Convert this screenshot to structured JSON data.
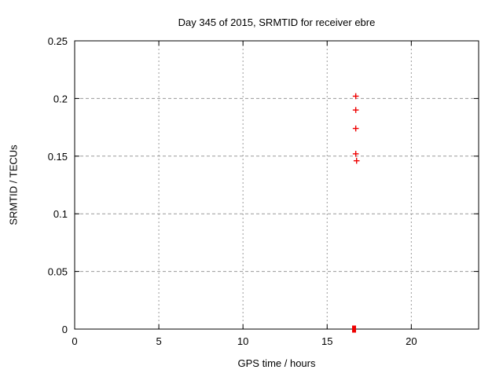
{
  "figure": {
    "background": "#ffffff",
    "axis_color": "#000000",
    "text_color": "#000000"
  },
  "chart_data": {
    "type": "scatter",
    "title": "Day 345 of 2015, SRMTID for receiver ebre",
    "xlabel": "GPS time / hours",
    "ylabel": "SRMTID / TECUs",
    "xlim": [
      0,
      24
    ],
    "ylim": [
      0,
      0.25
    ],
    "xticks": {
      "values": [
        0,
        5,
        10,
        15,
        20
      ],
      "labels": [
        "0",
        "5",
        "10",
        "15",
        "20"
      ]
    },
    "yticks": {
      "values": [
        0,
        0.05,
        0.1,
        0.15,
        0.2,
        0.25
      ],
      "labels": [
        "0",
        "0.05",
        "0.1",
        "0.15",
        "0.2",
        "0.25"
      ]
    },
    "grid": {
      "show": true,
      "color": "#9a9a9a"
    },
    "legend": {
      "show": false
    },
    "series": [
      {
        "name": "SRMTID",
        "marker": "plus",
        "color": "#ee0000",
        "points": [
          {
            "x": 16.7,
            "y": 0.202
          },
          {
            "x": 16.7,
            "y": 0.19
          },
          {
            "x": 16.7,
            "y": 0.174
          },
          {
            "x": 16.7,
            "y": 0.152
          },
          {
            "x": 16.75,
            "y": 0.146
          }
        ]
      }
    ],
    "zero_cluster": {
      "x": 16.6,
      "y": 0,
      "marker": "filled-square",
      "color": "#ee0000"
    }
  }
}
